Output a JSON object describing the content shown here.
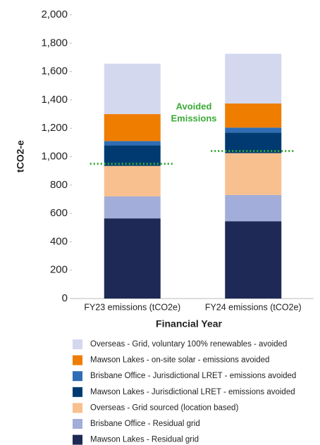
{
  "chart_data": {
    "type": "stacked_bar",
    "categories": [
      "FY23 emissions (tCO2e)",
      "FY24 emissions (tCO2e)"
    ],
    "xlabel": "Financial Year",
    "ylabel": "tCO2-e",
    "ylim": [
      0,
      2000
    ],
    "yticks": [
      0,
      200,
      400,
      600,
      800,
      {
        "value": 1000,
        "label": "1,000"
      },
      {
        "value": 1200,
        "label": "1,200"
      },
      {
        "value": 1400,
        "label": "1,400"
      },
      {
        "value": 1600,
        "label": "1,600"
      },
      {
        "value": 1800,
        "label": "1,800"
      },
      {
        "value": 2000,
        "label": "2,000"
      }
    ],
    "series": [
      {
        "name": "Mawson Lakes - Residual grid",
        "color": "#1e2a55",
        "values": [
          565,
          545
        ]
      },
      {
        "name": "Brisbane Office - Residual grid",
        "color": "#a3add9",
        "values": [
          155,
          185
        ]
      },
      {
        "name": "Overseas - Grid sourced (location based)",
        "color": "#f8c08f",
        "values": [
          215,
          295
        ]
      },
      {
        "name": "Mawson Lakes - Jurisdictional LRET - emissions avoided",
        "color": "#003a70",
        "values": [
          145,
          145
        ]
      },
      {
        "name": "Brisbane Office - Jurisdictional LRET - emissions avoided",
        "color": "#2f6db5",
        "values": [
          30,
          35
        ]
      },
      {
        "name": "Mawson Lakes - on-site solar - emissions avoided",
        "color": "#ef7d00",
        "values": [
          190,
          170
        ]
      },
      {
        "name": "Overseas - Grid, voluntary 100% renewables - avoided",
        "color": "#d3d8ef",
        "values": [
          355,
          350
        ]
      }
    ],
    "annotation": {
      "lines": [
        "Avoided",
        "Emissions"
      ],
      "color": "#3aaa35"
    },
    "reference_lines": {
      "values": [
        950,
        1040
      ],
      "color": "#3aaa35"
    }
  }
}
